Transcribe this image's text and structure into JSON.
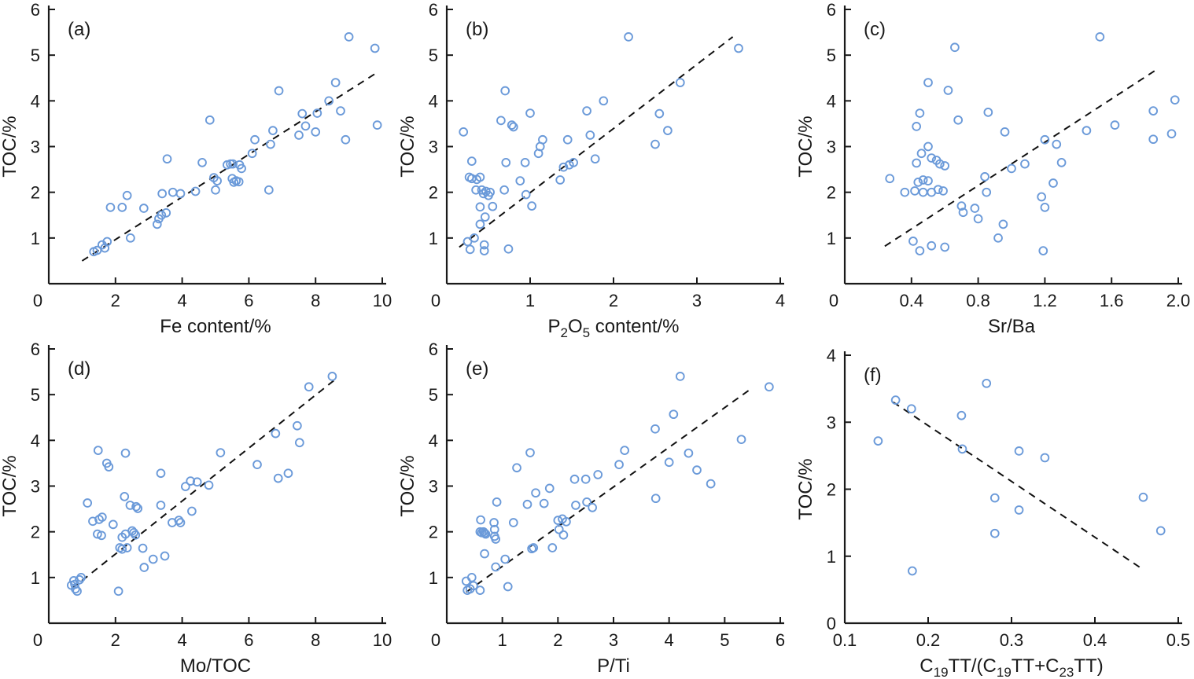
{
  "figure": {
    "background": "#ffffff",
    "marker_color": "#6b9ad9",
    "trend_color": "#111111",
    "axis_color": "#1a1a1a",
    "text_color": "#1a1a1a"
  },
  "chart_data": [
    {
      "type": "scatter",
      "panel_label": "(a)",
      "ylabel": "TOC/%",
      "xlabel_parts": [
        {
          "t": "Fe content/%"
        }
      ],
      "xlim": [
        0,
        10
      ],
      "ylim": [
        0,
        6
      ],
      "xticks": [
        0,
        2,
        4,
        6,
        8,
        10
      ],
      "xtick_labels": [
        "0",
        "2",
        "4",
        "6",
        "8",
        "10"
      ],
      "yticks": [
        1,
        2,
        3,
        4,
        5,
        6
      ],
      "ytick_labels": [
        "1",
        "2",
        "3",
        "4",
        "5",
        "6"
      ],
      "trend": [
        [
          1.0,
          0.5
        ],
        [
          9.78,
          4.59
        ]
      ],
      "points": [
        [
          1.35,
          0.7
        ],
        [
          1.45,
          0.73
        ],
        [
          1.6,
          0.85
        ],
        [
          1.68,
          0.78
        ],
        [
          1.75,
          0.92
        ],
        [
          1.85,
          1.67
        ],
        [
          2.2,
          1.67
        ],
        [
          2.35,
          1.93
        ],
        [
          2.45,
          1.0
        ],
        [
          2.85,
          1.65
        ],
        [
          3.25,
          1.3
        ],
        [
          3.3,
          1.42
        ],
        [
          3.38,
          1.5
        ],
        [
          3.4,
          1.97
        ],
        [
          3.52,
          1.55
        ],
        [
          3.55,
          2.73
        ],
        [
          3.72,
          2.0
        ],
        [
          3.95,
          1.97
        ],
        [
          4.4,
          2.02
        ],
        [
          4.6,
          2.65
        ],
        [
          4.83,
          3.58
        ],
        [
          4.95,
          2.32
        ],
        [
          5.0,
          2.05
        ],
        [
          5.05,
          2.25
        ],
        [
          5.35,
          2.6
        ],
        [
          5.45,
          2.62
        ],
        [
          5.5,
          2.3
        ],
        [
          5.52,
          2.62
        ],
        [
          5.55,
          2.22
        ],
        [
          5.62,
          2.25
        ],
        [
          5.7,
          2.23
        ],
        [
          5.72,
          2.6
        ],
        [
          5.78,
          2.52
        ],
        [
          6.1,
          2.85
        ],
        [
          6.18,
          3.15
        ],
        [
          6.6,
          2.05
        ],
        [
          6.65,
          3.05
        ],
        [
          6.72,
          3.35
        ],
        [
          6.9,
          4.22
        ],
        [
          7.5,
          3.25
        ],
        [
          7.6,
          3.72
        ],
        [
          7.7,
          3.45
        ],
        [
          8.0,
          3.32
        ],
        [
          8.05,
          3.73
        ],
        [
          8.4,
          4.0
        ],
        [
          8.6,
          4.4
        ],
        [
          8.75,
          3.78
        ],
        [
          8.9,
          3.15
        ],
        [
          9.0,
          5.4
        ],
        [
          9.78,
          5.15
        ],
        [
          9.85,
          3.47
        ]
      ]
    },
    {
      "type": "scatter",
      "panel_label": "(b)",
      "ylabel": "TOC/%",
      "xlabel_parts": [
        {
          "t": "P"
        },
        {
          "t": "2",
          "sub": true
        },
        {
          "t": "O"
        },
        {
          "t": "5",
          "sub": true
        },
        {
          "t": " content/%"
        }
      ],
      "xlim": [
        0,
        4
      ],
      "ylim": [
        0,
        6
      ],
      "xticks": [
        0,
        1,
        2,
        3,
        4
      ],
      "xtick_labels": [
        "0",
        "1",
        "2",
        "3",
        "4"
      ],
      "yticks": [
        1,
        2,
        3,
        4,
        5,
        6
      ],
      "ytick_labels": [
        "1",
        "2",
        "3",
        "4",
        "5",
        "6"
      ],
      "trend": [
        [
          0.15,
          0.8
        ],
        [
          3.43,
          5.4
        ]
      ],
      "points": [
        [
          0.2,
          3.32
        ],
        [
          0.25,
          0.92
        ],
        [
          0.28,
          0.75
        ],
        [
          0.27,
          2.33
        ],
        [
          0.3,
          2.68
        ],
        [
          0.3,
          2.3
        ],
        [
          0.33,
          1.0
        ],
        [
          0.35,
          2.05
        ],
        [
          0.36,
          2.28
        ],
        [
          0.4,
          2.33
        ],
        [
          0.42,
          2.05
        ],
        [
          0.4,
          1.68
        ],
        [
          0.45,
          0.72
        ],
        [
          0.45,
          0.85
        ],
        [
          0.4,
          1.3
        ],
        [
          0.46,
          1.46
        ],
        [
          0.44,
          1.97
        ],
        [
          0.47,
          2.02
        ],
        [
          0.5,
          1.93
        ],
        [
          0.52,
          2.0
        ],
        [
          0.55,
          1.69
        ],
        [
          0.65,
          3.57
        ],
        [
          0.7,
          4.22
        ],
        [
          0.71,
          2.65
        ],
        [
          0.69,
          2.05
        ],
        [
          0.78,
          3.47
        ],
        [
          0.8,
          3.43
        ],
        [
          0.74,
          0.76
        ],
        [
          0.88,
          2.25
        ],
        [
          0.94,
          2.65
        ],
        [
          1.0,
          3.73
        ],
        [
          0.95,
          1.95
        ],
        [
          1.02,
          1.7
        ],
        [
          1.1,
          2.85
        ],
        [
          1.12,
          3.0
        ],
        [
          1.15,
          3.15
        ],
        [
          1.36,
          2.27
        ],
        [
          1.4,
          2.55
        ],
        [
          1.45,
          3.15
        ],
        [
          1.47,
          2.6
        ],
        [
          1.52,
          2.65
        ],
        [
          1.68,
          3.78
        ],
        [
          1.72,
          3.25
        ],
        [
          1.78,
          2.73
        ],
        [
          1.88,
          4.0
        ],
        [
          2.18,
          5.4
        ],
        [
          2.5,
          3.05
        ],
        [
          2.55,
          3.72
        ],
        [
          2.65,
          3.35
        ],
        [
          2.8,
          4.4
        ],
        [
          3.5,
          5.15
        ]
      ]
    },
    {
      "type": "scatter",
      "panel_label": "(c)",
      "ylabel": "TOC/%",
      "xlabel_parts": [
        {
          "t": "Sr/Ba"
        }
      ],
      "xlim": [
        0,
        2.0
      ],
      "ylim": [
        0,
        6
      ],
      "xticks": [
        0,
        0.4,
        0.8,
        1.2,
        1.6,
        2.0
      ],
      "xtick_labels": [
        "0",
        "0.4",
        "0.8",
        "1.2",
        "1.6",
        "2.0"
      ],
      "yticks": [
        1,
        2,
        3,
        4,
        5,
        6
      ],
      "ytick_labels": [
        "1",
        "2",
        "3",
        "4",
        "5",
        "6"
      ],
      "trend": [
        [
          0.24,
          0.82
        ],
        [
          1.86,
          4.66
        ]
      ],
      "points": [
        [
          0.27,
          2.3
        ],
        [
          0.36,
          2.0
        ],
        [
          0.43,
          3.44
        ],
        [
          0.43,
          2.64
        ],
        [
          0.42,
          2.03
        ],
        [
          0.41,
          0.93
        ],
        [
          0.44,
          2.22
        ],
        [
          0.45,
          0.72
        ],
        [
          0.47,
          2.27
        ],
        [
          0.45,
          3.73
        ],
        [
          0.46,
          2.85
        ],
        [
          0.47,
          2.0
        ],
        [
          0.5,
          4.4
        ],
        [
          0.5,
          3.0
        ],
        [
          0.52,
          2.75
        ],
        [
          0.5,
          2.25
        ],
        [
          0.52,
          2.0
        ],
        [
          0.52,
          0.83
        ],
        [
          0.55,
          2.7
        ],
        [
          0.57,
          2.62
        ],
        [
          0.56,
          2.06
        ],
        [
          0.59,
          2.03
        ],
        [
          0.6,
          2.58
        ],
        [
          0.6,
          0.8
        ],
        [
          0.62,
          4.23
        ],
        [
          0.66,
          5.17
        ],
        [
          0.68,
          3.58
        ],
        [
          0.7,
          1.7
        ],
        [
          0.71,
          1.56
        ],
        [
          0.78,
          1.65
        ],
        [
          0.8,
          1.42
        ],
        [
          0.86,
          3.75
        ],
        [
          0.84,
          2.34
        ],
        [
          0.85,
          2.0
        ],
        [
          0.92,
          1.0
        ],
        [
          0.95,
          1.3
        ],
        [
          0.96,
          3.32
        ],
        [
          1.0,
          2.52
        ],
        [
          1.08,
          2.62
        ],
        [
          1.18,
          1.9
        ],
        [
          1.19,
          0.72
        ],
        [
          1.2,
          1.67
        ],
        [
          1.2,
          3.15
        ],
        [
          1.25,
          2.2
        ],
        [
          1.27,
          3.05
        ],
        [
          1.3,
          2.65
        ],
        [
          1.45,
          3.35
        ],
        [
          1.53,
          5.4
        ],
        [
          1.62,
          3.47
        ],
        [
          1.85,
          3.78
        ],
        [
          1.85,
          3.16
        ],
        [
          1.96,
          3.28
        ],
        [
          1.98,
          4.02
        ]
      ]
    },
    {
      "type": "scatter",
      "panel_label": "(d)",
      "ylabel": "TOC/%",
      "xlabel_parts": [
        {
          "t": "Mo/TOC"
        }
      ],
      "xlim": [
        0,
        10
      ],
      "ylim": [
        0,
        6
      ],
      "xticks": [
        0,
        2,
        4,
        6,
        8,
        10
      ],
      "xtick_labels": [
        "0",
        "2",
        "4",
        "6",
        "8",
        "10"
      ],
      "yticks": [
        1,
        2,
        3,
        4,
        5,
        6
      ],
      "ytick_labels": [
        "1",
        "2",
        "3",
        "4",
        "5",
        "6"
      ],
      "trend": [
        [
          0.7,
          0.76
        ],
        [
          8.62,
          5.35
        ]
      ],
      "points": [
        [
          0.68,
          0.83
        ],
        [
          0.75,
          0.93
        ],
        [
          0.78,
          0.85
        ],
        [
          0.8,
          0.75
        ],
        [
          0.85,
          0.7
        ],
        [
          0.92,
          0.95
        ],
        [
          0.97,
          1.0
        ],
        [
          1.16,
          2.63
        ],
        [
          1.32,
          2.23
        ],
        [
          1.46,
          1.95
        ],
        [
          1.48,
          3.78
        ],
        [
          1.51,
          2.27
        ],
        [
          1.58,
          1.92
        ],
        [
          1.6,
          2.32
        ],
        [
          1.74,
          3.5
        ],
        [
          1.8,
          3.42
        ],
        [
          1.93,
          2.16
        ],
        [
          2.09,
          0.7
        ],
        [
          2.13,
          1.65
        ],
        [
          2.2,
          1.62
        ],
        [
          2.27,
          2.77
        ],
        [
          2.3,
          3.72
        ],
        [
          2.35,
          1.65
        ],
        [
          2.44,
          2.58
        ],
        [
          2.5,
          2.02
        ],
        [
          2.55,
          1.98
        ],
        [
          2.6,
          1.93
        ],
        [
          2.2,
          1.88
        ],
        [
          2.3,
          1.95
        ],
        [
          2.62,
          2.55
        ],
        [
          2.67,
          2.51
        ],
        [
          2.82,
          1.64
        ],
        [
          2.86,
          1.22
        ],
        [
          3.13,
          1.4
        ],
        [
          3.36,
          2.58
        ],
        [
          3.36,
          3.28
        ],
        [
          3.48,
          1.47
        ],
        [
          3.7,
          2.2
        ],
        [
          3.9,
          2.25
        ],
        [
          3.95,
          2.2
        ],
        [
          4.1,
          2.99
        ],
        [
          4.25,
          3.11
        ],
        [
          4.29,
          2.45
        ],
        [
          4.45,
          3.09
        ],
        [
          4.8,
          3.02
        ],
        [
          5.15,
          3.73
        ],
        [
          6.25,
          3.47
        ],
        [
          6.8,
          4.15
        ],
        [
          6.88,
          3.17
        ],
        [
          7.18,
          3.28
        ],
        [
          7.45,
          4.32
        ],
        [
          7.52,
          3.95
        ],
        [
          7.8,
          5.17
        ],
        [
          8.5,
          5.4
        ]
      ]
    },
    {
      "type": "scatter",
      "panel_label": "(e)",
      "ylabel": "TOC/%",
      "xlabel_parts": [
        {
          "t": "P/Ti"
        }
      ],
      "xlim": [
        0,
        6
      ],
      "ylim": [
        0,
        6
      ],
      "xticks": [
        0,
        1,
        2,
        3,
        4,
        5,
        6
      ],
      "xtick_labels": [
        "0",
        "1",
        "2",
        "3",
        "4",
        "5",
        "6"
      ],
      "yticks": [
        1,
        2,
        3,
        4,
        5,
        6
      ],
      "ytick_labels": [
        "1",
        "2",
        "3",
        "4",
        "5",
        "6"
      ],
      "trend": [
        [
          0.35,
          0.68
        ],
        [
          5.5,
          5.15
        ]
      ],
      "points": [
        [
          0.35,
          0.92
        ],
        [
          0.37,
          0.72
        ],
        [
          0.42,
          0.75
        ],
        [
          0.45,
          1.0
        ],
        [
          0.48,
          0.82
        ],
        [
          0.6,
          0.72
        ],
        [
          0.61,
          2.26
        ],
        [
          0.6,
          2.0
        ],
        [
          0.63,
          1.98
        ],
        [
          0.66,
          2.0
        ],
        [
          0.68,
          1.97
        ],
        [
          0.7,
          1.95
        ],
        [
          0.68,
          1.52
        ],
        [
          0.85,
          2.2
        ],
        [
          0.86,
          2.05
        ],
        [
          0.88,
          1.23
        ],
        [
          0.86,
          1.9
        ],
        [
          0.88,
          1.84
        ],
        [
          0.9,
          2.65
        ],
        [
          1.05,
          1.4
        ],
        [
          1.1,
          0.8
        ],
        [
          1.2,
          2.2
        ],
        [
          1.26,
          3.4
        ],
        [
          1.45,
          2.6
        ],
        [
          1.5,
          3.73
        ],
        [
          1.53,
          1.63
        ],
        [
          1.56,
          1.65
        ],
        [
          1.6,
          2.85
        ],
        [
          1.75,
          2.62
        ],
        [
          1.85,
          2.95
        ],
        [
          1.9,
          1.65
        ],
        [
          2.0,
          2.25
        ],
        [
          2.02,
          2.05
        ],
        [
          2.1,
          1.93
        ],
        [
          2.08,
          2.28
        ],
        [
          2.15,
          2.22
        ],
        [
          2.3,
          3.15
        ],
        [
          2.32,
          2.58
        ],
        [
          2.5,
          3.15
        ],
        [
          2.52,
          2.65
        ],
        [
          2.62,
          2.53
        ],
        [
          2.72,
          3.25
        ],
        [
          3.1,
          3.47
        ],
        [
          3.2,
          3.78
        ],
        [
          3.75,
          4.25
        ],
        [
          3.76,
          2.73
        ],
        [
          4.0,
          3.52
        ],
        [
          4.08,
          4.57
        ],
        [
          4.2,
          5.4
        ],
        [
          4.35,
          3.72
        ],
        [
          4.5,
          3.35
        ],
        [
          4.75,
          3.05
        ],
        [
          5.3,
          4.02
        ],
        [
          5.8,
          5.17
        ]
      ]
    },
    {
      "type": "scatter",
      "panel_label": "(f)",
      "ylabel": "TOC/%",
      "xlabel_parts": [
        {
          "t": "C"
        },
        {
          "t": "19",
          "sub": true
        },
        {
          "t": "TT/(C"
        },
        {
          "t": "19",
          "sub": true
        },
        {
          "t": "TT+C"
        },
        {
          "t": "23",
          "sub": true
        },
        {
          "t": "TT)"
        }
      ],
      "xlim": [
        0.1,
        0.5
      ],
      "ylim": [
        0,
        4
      ],
      "xticks": [
        0.1,
        0.2,
        0.3,
        0.4,
        0.5
      ],
      "xtick_labels": [
        "0.1",
        "0.2",
        "0.3",
        "0.4",
        "0.5"
      ],
      "yticks": [
        0,
        1,
        2,
        3,
        4
      ],
      "ytick_labels": [
        "0",
        "1",
        "2",
        "3",
        "4"
      ],
      "trend": [
        [
          0.158,
          3.3
        ],
        [
          0.458,
          0.8
        ]
      ],
      "points": [
        [
          0.14,
          2.72
        ],
        [
          0.161,
          3.33
        ],
        [
          0.18,
          3.2
        ],
        [
          0.181,
          0.78
        ],
        [
          0.24,
          3.1
        ],
        [
          0.241,
          2.6
        ],
        [
          0.27,
          3.58
        ],
        [
          0.28,
          1.87
        ],
        [
          0.28,
          1.34
        ],
        [
          0.309,
          2.57
        ],
        [
          0.309,
          1.69
        ],
        [
          0.34,
          2.47
        ],
        [
          0.458,
          1.88
        ],
        [
          0.479,
          1.38
        ]
      ]
    }
  ]
}
